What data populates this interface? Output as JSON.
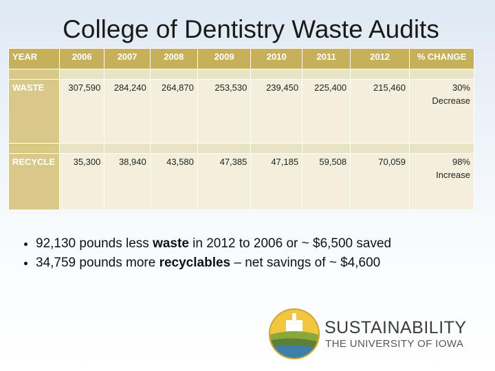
{
  "title": "College of Dentistry Waste Audits",
  "table": {
    "header": [
      "YEAR",
      "2006",
      "2007",
      "2008",
      "2009",
      "2010",
      "2011",
      "2012",
      "% CHANGE"
    ],
    "rows": [
      {
        "label": "WASTE",
        "values": [
          "307,590",
          "284,240",
          "264,870",
          "253,530",
          "239,450",
          "225,400",
          "215,460"
        ],
        "change": [
          "30%",
          "Decrease"
        ]
      },
      {
        "label": "RECYCLE",
        "values": [
          "35,300",
          "38,940",
          "43,580",
          "47,385",
          "47,185",
          "59,508",
          "70,059"
        ],
        "change": [
          "98%",
          "Increase"
        ]
      }
    ]
  },
  "bullets": [
    {
      "parts": [
        "92,130 pounds less ",
        "waste",
        " in 2012 to 2006 or ~ $6,500 saved"
      ]
    },
    {
      "parts": [
        "34,759 pounds more ",
        "recyclables",
        " – net savings of ~ $4,600"
      ]
    }
  ],
  "logo": {
    "name": "SUSTAINABILITY",
    "subtitle": "THE UNIVERSITY OF IOWA"
  }
}
